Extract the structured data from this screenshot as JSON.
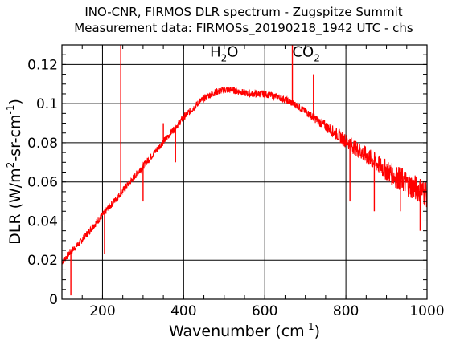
{
  "chart_data": {
    "type": "line",
    "title": "INO-CNR, FIRMOS DLR spectrum - Zugspitze Summit",
    "subtitle": "Measurement data: FIRMOSs_20190218_1942 UTC - chs",
    "xlabel": {
      "text": "Wavenumber (cm",
      "sup": "-1",
      "close": ")"
    },
    "ylabel": {
      "part1": "DLR (W/m",
      "sup1": "2",
      "part2": "-sr-cm",
      "sup2": "-1",
      "close": ")"
    },
    "xlim": [
      100,
      1000
    ],
    "ylim": [
      0,
      0.13
    ],
    "x_ticks": [
      200,
      400,
      600,
      800,
      1000
    ],
    "x_tick_labels": [
      "200",
      "400",
      "600",
      "800",
      "1000"
    ],
    "y_ticks": [
      0,
      0.02,
      0.04,
      0.06,
      0.08,
      0.1,
      0.12
    ],
    "y_tick_labels": [
      "0",
      "0.02",
      "0.04",
      "0.06",
      "0.08",
      "0.1",
      "0.12"
    ],
    "grid": true,
    "line_color": "#ff0000",
    "annotations": [
      {
        "base": "H",
        "sub": "2",
        "tail": "O",
        "x": 500,
        "y": 0.124
      },
      {
        "base": "CO",
        "sub": "2",
        "tail": "",
        "x": 702,
        "y": 0.124
      }
    ],
    "series": [
      {
        "x": [
          100,
          120,
          140,
          160,
          180,
          200,
          220,
          240,
          260,
          280,
          300,
          320,
          340,
          360,
          380,
          400,
          420,
          440,
          460,
          480,
          500,
          520,
          540,
          560,
          580,
          600,
          620,
          640,
          660,
          680,
          700,
          720,
          740,
          760,
          780,
          800,
          820,
          840,
          860,
          880,
          900,
          920,
          940,
          960,
          980,
          1000
        ],
        "y": [
          0.019,
          0.024,
          0.028,
          0.033,
          0.038,
          0.043,
          0.048,
          0.053,
          0.058,
          0.063,
          0.068,
          0.073,
          0.078,
          0.083,
          0.088,
          0.093,
          0.097,
          0.101,
          0.104,
          0.106,
          0.107,
          0.107,
          0.106,
          0.105,
          0.105,
          0.105,
          0.104,
          0.103,
          0.101,
          0.099,
          0.096,
          0.093,
          0.09,
          0.087,
          0.084,
          0.081,
          0.078,
          0.075,
          0.072,
          0.069,
          0.066,
          0.063,
          0.061,
          0.058,
          0.056,
          0.054
        ]
      }
    ],
    "spikes": [
      {
        "x": 122,
        "y": 0.002
      },
      {
        "x": 205,
        "y": 0.023
      },
      {
        "x": 245,
        "y": 0.13
      },
      {
        "x": 300,
        "y": 0.05
      },
      {
        "x": 350,
        "y": 0.09
      },
      {
        "x": 380,
        "y": 0.07
      },
      {
        "x": 668,
        "y": 0.13
      },
      {
        "x": 720,
        "y": 0.115
      },
      {
        "x": 810,
        "y": 0.05
      },
      {
        "x": 870,
        "y": 0.045
      },
      {
        "x": 935,
        "y": 0.045
      },
      {
        "x": 983,
        "y": 0.035
      }
    ]
  }
}
